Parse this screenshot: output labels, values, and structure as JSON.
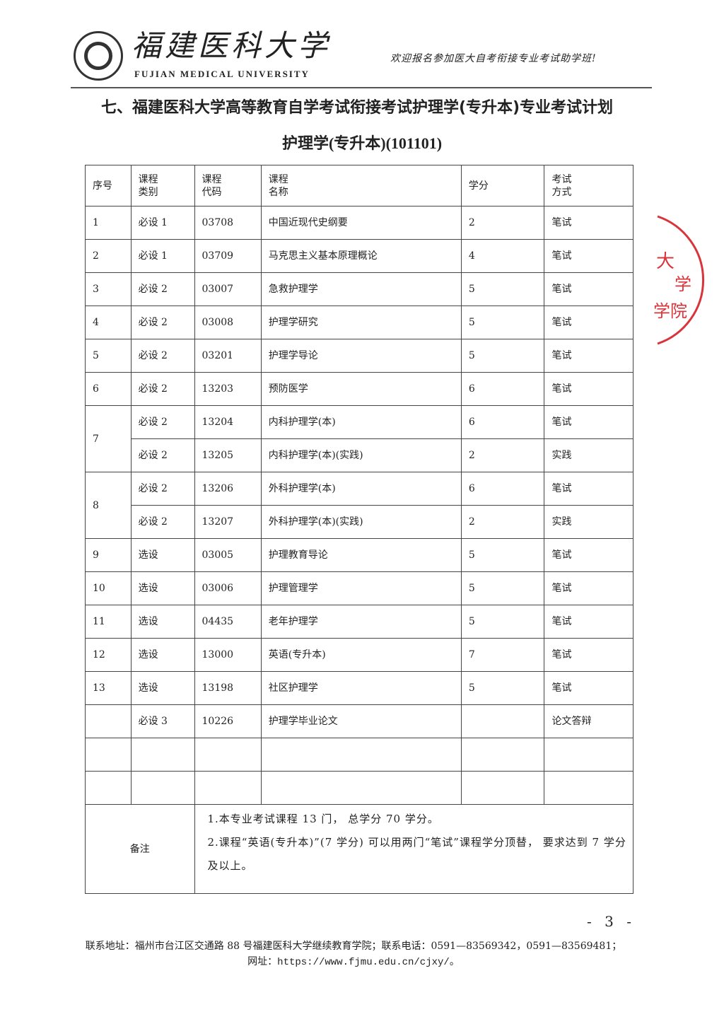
{
  "header": {
    "university_cn": "福建医科大学",
    "university_en": "FUJIAN MEDICAL UNIVERSITY",
    "slogan": "欢迎报名参加医大自考衔接专业考试助学班!"
  },
  "title": "七、福建医科大学高等教育自学考试衔接考试护理学(专升本)专业考试计划",
  "subtitle": "护理学(专升本)(101101)",
  "table": {
    "headers": [
      "序号",
      "课程类别",
      "课程代码",
      "课程名称",
      "学分",
      "考试方式"
    ],
    "groups": [
      {
        "seq": "1",
        "courses": [
          [
            "必设 1",
            "03708",
            "中国近现代史纲要",
            "2",
            "笔试"
          ]
        ]
      },
      {
        "seq": "2",
        "courses": [
          [
            "必设 1",
            "03709",
            "马克思主义基本原理概论",
            "4",
            "笔试"
          ]
        ]
      },
      {
        "seq": "3",
        "courses": [
          [
            "必设 2",
            "03007",
            "急救护理学",
            "5",
            "笔试"
          ]
        ]
      },
      {
        "seq": "4",
        "courses": [
          [
            "必设 2",
            "03008",
            "护理学研究",
            "5",
            "笔试"
          ]
        ]
      },
      {
        "seq": "5",
        "courses": [
          [
            "必设 2",
            "03201",
            "护理学导论",
            "5",
            "笔试"
          ]
        ]
      },
      {
        "seq": "6",
        "courses": [
          [
            "必设 2",
            "13203",
            "预防医学",
            "6",
            "笔试"
          ]
        ]
      },
      {
        "seq": "7",
        "courses": [
          [
            "必设 2",
            "13204",
            "内科护理学(本)",
            "6",
            "笔试"
          ],
          [
            "必设 2",
            "13205",
            "内科护理学(本)(实践)",
            "2",
            "实践"
          ]
        ]
      },
      {
        "seq": "8",
        "courses": [
          [
            "必设 2",
            "13206",
            "外科护理学(本)",
            "6",
            "笔试"
          ],
          [
            "必设 2",
            "13207",
            "外科护理学(本)(实践)",
            "2",
            "实践"
          ]
        ]
      },
      {
        "seq": "9",
        "courses": [
          [
            "选设",
            "03005",
            "护理教育导论",
            "5",
            "笔试"
          ]
        ]
      },
      {
        "seq": "10",
        "courses": [
          [
            "选设",
            "03006",
            "护理管理学",
            "5",
            "笔试"
          ]
        ]
      },
      {
        "seq": "11",
        "courses": [
          [
            "选设",
            "04435",
            "老年护理学",
            "5",
            "笔试"
          ]
        ]
      },
      {
        "seq": "12",
        "courses": [
          [
            "选设",
            "13000",
            "英语(专升本)",
            "7",
            "笔试"
          ]
        ]
      },
      {
        "seq": "13",
        "courses": [
          [
            "选设",
            "13198",
            "社区护理学",
            "5",
            "笔试"
          ]
        ]
      },
      {
        "seq": "",
        "courses": [
          [
            "必设 3",
            "10226",
            "护理学毕业论文",
            "",
            "论文答辩"
          ]
        ]
      },
      {
        "seq": "",
        "courses": [
          [
            "",
            "",
            "",
            "",
            ""
          ]
        ]
      },
      {
        "seq": "",
        "courses": [
          [
            "",
            "",
            "",
            "",
            ""
          ]
        ]
      }
    ],
    "notes_label": "备注",
    "notes": [
      "1.本专业考试课程 13 门， 总学分 70 学分。",
      "2.课程“英语(专升本)”(7 学分) 可以用两门“笔试”课程学分顶替， 要求达到 7 学分及以上。"
    ]
  },
  "page_number": "- 3 -",
  "footer": {
    "address": "联系地址：福州市台江区交通路 88 号福建医科大学继续教育学院；联系电话：0591—83569342，0591—83569481；",
    "website_label": "网址：",
    "website": "https://www.fjmu.edu.cn/cjxy/",
    "website_suffix": "。"
  },
  "stamp": {
    "text": "大学 学院",
    "color": "#d9343b"
  },
  "colors": {
    "text": "#222222",
    "stamp": "#d9343b"
  }
}
